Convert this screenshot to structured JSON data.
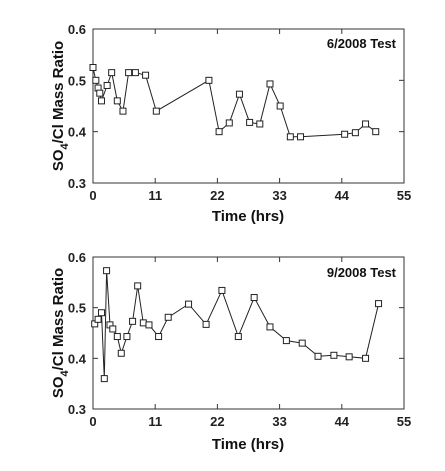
{
  "chart_data": [
    {
      "type": "line",
      "annotation": "6/2008 Test",
      "xlabel": "Time (hrs)",
      "ylabel": "SO4/Cl Mass Ratio",
      "ylabel_main": "SO",
      "ylabel_sub": "4",
      "ylabel_rest": "/Cl Mass Ratio",
      "xlim": [
        0,
        55
      ],
      "ylim": [
        0.3,
        0.6
      ],
      "xticks": [
        0,
        11,
        22,
        33,
        44,
        55
      ],
      "yticks": [
        0.3,
        0.4,
        0.5,
        0.6
      ],
      "xtick_labels": [
        "0",
        "11",
        "22",
        "33",
        "44",
        "55"
      ],
      "ytick_labels": [
        "0.3",
        "0.4",
        "0.5",
        "0.6"
      ],
      "grid": false,
      "x": [
        0,
        0.5,
        0.9,
        1.2,
        1.5,
        2.5,
        3.3,
        4.3,
        5.3,
        6.3,
        7.5,
        9.3,
        11.2,
        20.5,
        22.3,
        24.1,
        25.9,
        27.7,
        29.5,
        31.3,
        33.1,
        34.9,
        36.7,
        44.5,
        46.4,
        48.2,
        50.0
      ],
      "y": [
        0.525,
        0.5,
        0.485,
        0.475,
        0.46,
        0.49,
        0.515,
        0.46,
        0.44,
        0.515,
        0.515,
        0.51,
        0.44,
        0.5,
        0.4,
        0.417,
        0.473,
        0.418,
        0.415,
        0.493,
        0.45,
        0.39,
        0.39,
        0.395,
        0.398,
        0.415,
        0.4
      ]
    },
    {
      "type": "line",
      "annotation": "9/2008 Test",
      "xlabel": "Time (hrs)",
      "ylabel": "SO4/Cl Mass Ratio",
      "ylabel_main": "SO",
      "ylabel_sub": "4",
      "ylabel_rest": "/Cl Mass Ratio",
      "xlim": [
        0,
        55
      ],
      "ylim": [
        0.3,
        0.6
      ],
      "xticks": [
        0,
        11,
        22,
        33,
        44,
        55
      ],
      "yticks": [
        0.3,
        0.4,
        0.5,
        0.6
      ],
      "xtick_labels": [
        "0",
        "11",
        "22",
        "33",
        "44",
        "55"
      ],
      "ytick_labels": [
        "0.3",
        "0.4",
        "0.5",
        "0.6"
      ],
      "grid": false,
      "x": [
        0.3,
        0.9,
        1.5,
        2.0,
        2.4,
        3.0,
        3.5,
        4.3,
        5.0,
        6.0,
        7.0,
        7.9,
        8.9,
        9.9,
        11.6,
        13.3,
        16.9,
        20.0,
        22.8,
        25.7,
        28.5,
        31.3,
        34.2,
        37.0,
        39.8,
        42.6,
        45.3,
        48.2,
        50.5
      ],
      "y": [
        0.468,
        0.477,
        0.49,
        0.36,
        0.573,
        0.466,
        0.458,
        0.443,
        0.41,
        0.443,
        0.473,
        0.543,
        0.47,
        0.466,
        0.443,
        0.481,
        0.507,
        0.467,
        0.534,
        0.443,
        0.52,
        0.462,
        0.435,
        0.43,
        0.404,
        0.406,
        0.403,
        0.4,
        0.508
      ]
    }
  ]
}
